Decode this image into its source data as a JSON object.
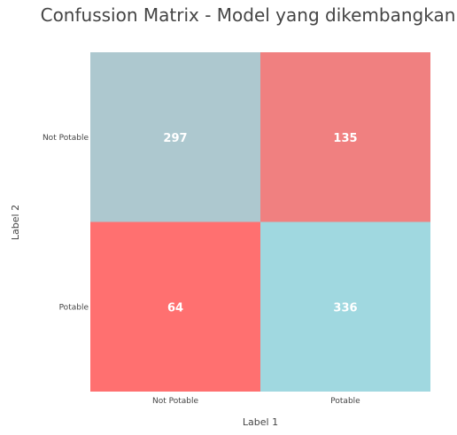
{
  "chart_data": {
    "type": "heatmap",
    "title": "Confussion Matrix - Model yang dikembangkan",
    "xlabel": "Label 1",
    "ylabel": "Label 2",
    "x_categories": [
      "Not Potable",
      "Potable"
    ],
    "y_categories": [
      "Not Potable",
      "Potable"
    ],
    "values": [
      [
        297,
        135
      ],
      [
        64,
        336
      ]
    ],
    "cell_colors": [
      [
        "#adc8cf",
        "#f08080"
      ],
      [
        "#ff7070",
        "#a0d8e0"
      ]
    ],
    "grid": false,
    "legend": "none"
  }
}
